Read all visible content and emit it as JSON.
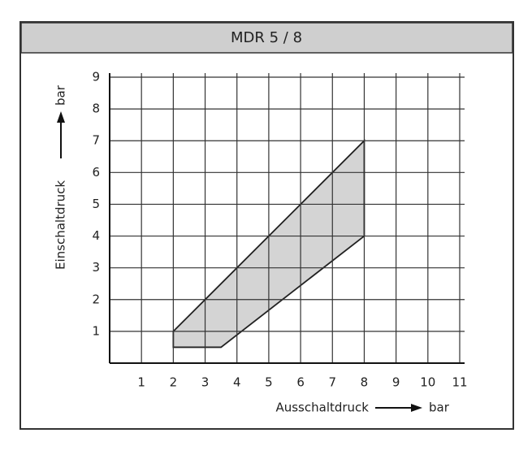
{
  "chart_data": {
    "type": "polygon",
    "title": "MDR 5 / 8",
    "x_label": "Ausschaltdruck",
    "x_unit": "bar",
    "y_label": "Einschaltdruck",
    "y_unit": "bar",
    "x": [
      2,
      8,
      8,
      3.5,
      2
    ],
    "y": [
      1,
      7,
      4,
      0.5,
      0.5
    ],
    "color": "#d4d4d4",
    "xlim": [
      0,
      11
    ],
    "ylim": [
      0,
      9
    ],
    "xticks": [
      1,
      2,
      3,
      4,
      5,
      6,
      7,
      8,
      9,
      10,
      11
    ],
    "yticks": [
      1,
      2,
      3,
      4,
      5,
      6,
      7,
      8,
      9
    ],
    "grid": true
  }
}
